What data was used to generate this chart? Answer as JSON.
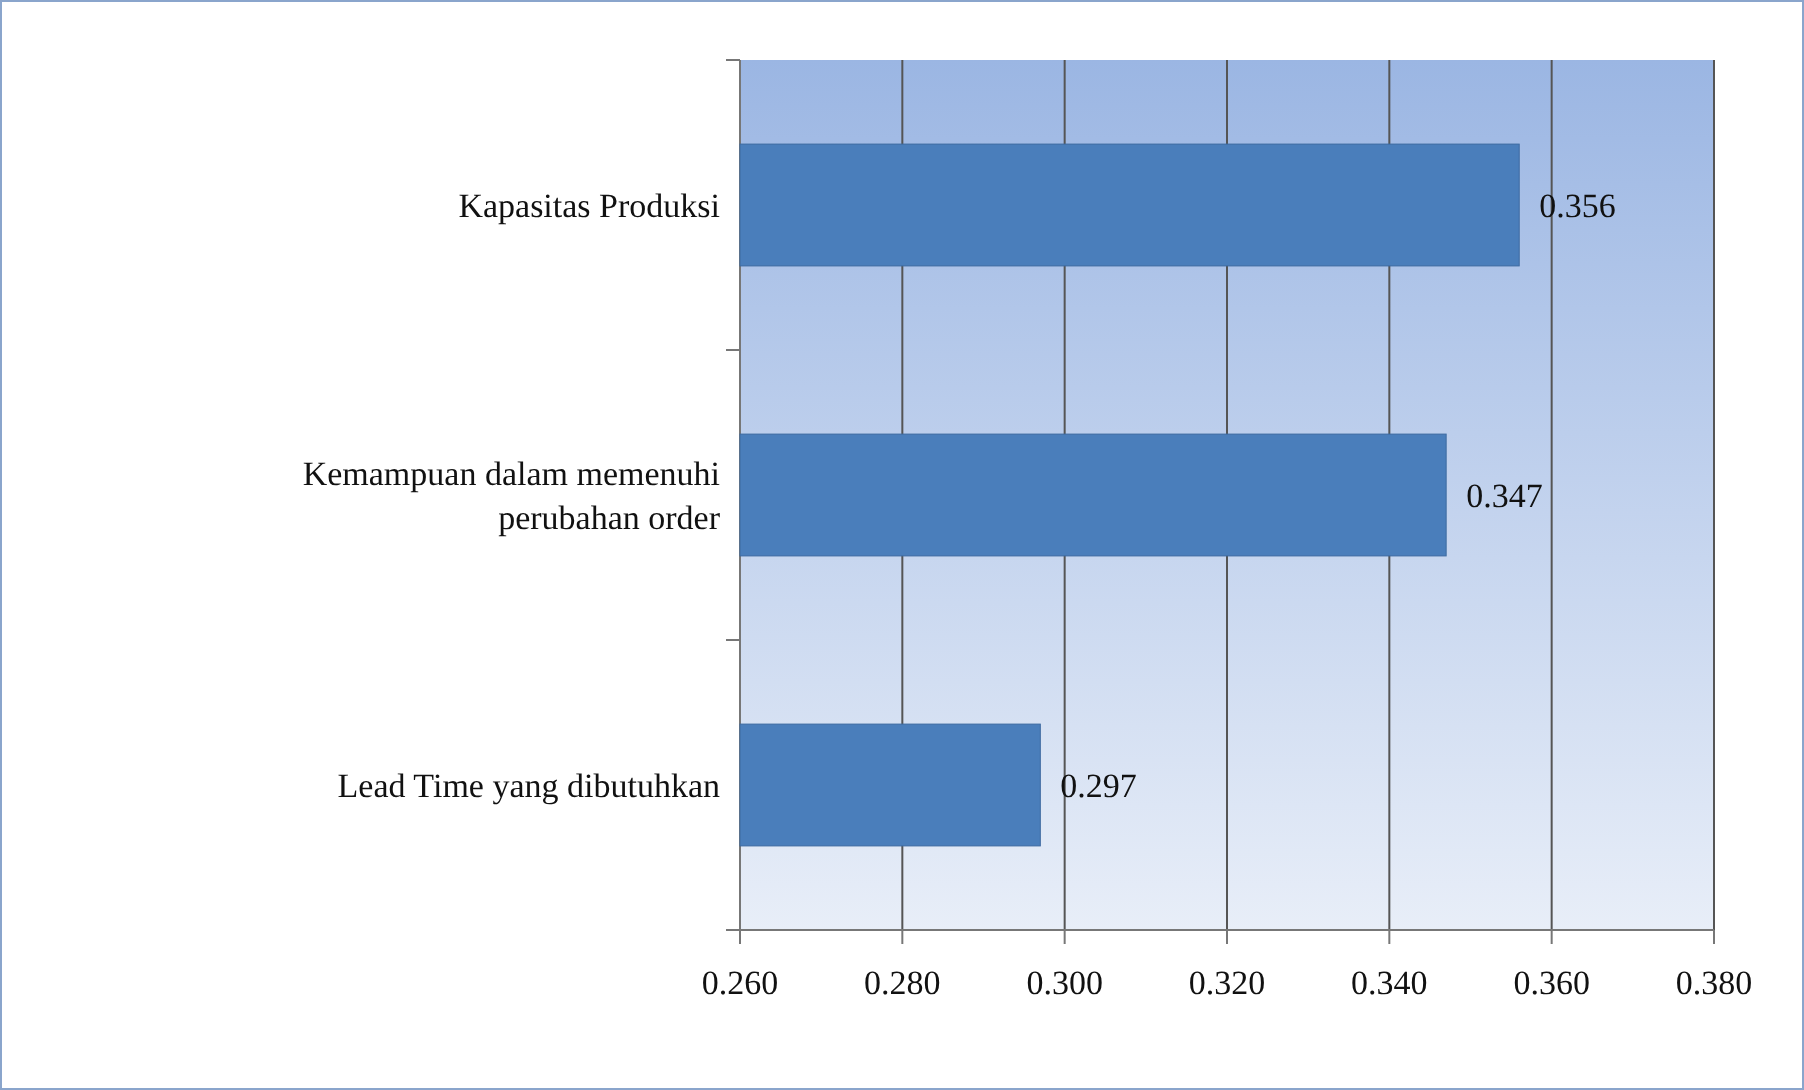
{
  "chart_data": {
    "type": "bar",
    "orientation": "horizontal",
    "categories": [
      "Kapasitas Produksi",
      "Kemampuan dalam memenuhi perubahan order",
      "Lead Time yang dibutuhkan"
    ],
    "values": [
      0.356,
      0.347,
      0.297
    ],
    "value_labels": [
      "0.356",
      "0.347",
      "0.297"
    ],
    "color": "#4a7ebb",
    "xlim": [
      0.26,
      0.38
    ],
    "xticks": [
      {
        "value": 0.26,
        "label": "0.260"
      },
      {
        "value": 0.28,
        "label": "0.280"
      },
      {
        "value": 0.3,
        "label": "0.300"
      },
      {
        "value": 0.32,
        "label": "0.320"
      },
      {
        "value": 0.34,
        "label": "0.340"
      },
      {
        "value": 0.36,
        "label": "0.360"
      },
      {
        "value": 0.38,
        "label": "0.380"
      }
    ],
    "grid": "x"
  }
}
